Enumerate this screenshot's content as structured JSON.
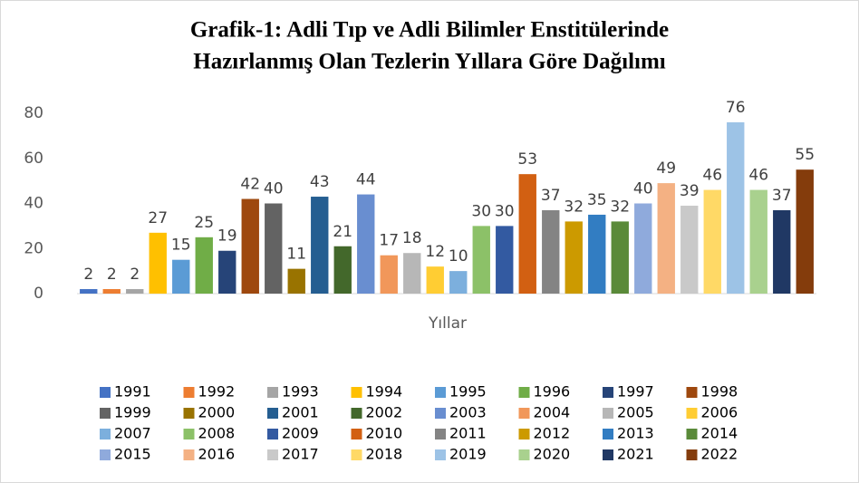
{
  "chart_data": {
    "type": "bar",
    "title": [
      "Grafik-1: Adli Tıp ve Adli Bilimler Enstitülerinde",
      "Hazırlanmış Olan Tezlerin Yıllara Göre Dağılımı"
    ],
    "x_label": "Yıllar",
    "categories": [
      "1991",
      "1992",
      "1993",
      "1994",
      "1995",
      "1996",
      "1997",
      "1998",
      "1999",
      "2000",
      "2001",
      "2002",
      "2003",
      "2004",
      "2005",
      "2006",
      "2007",
      "2008",
      "2009",
      "2010",
      "2011",
      "2012",
      "2013",
      "2014",
      "2015",
      "2016",
      "2017",
      "2018",
      "2019",
      "2020",
      "2021",
      "2022"
    ],
    "values": [
      2,
      2,
      2,
      27,
      15,
      25,
      19,
      42,
      40,
      11,
      43,
      21,
      44,
      17,
      18,
      12,
      10,
      30,
      30,
      53,
      37,
      32,
      35,
      32,
      40,
      49,
      39,
      46,
      76,
      46,
      37,
      55
    ],
    "colors": [
      "#4472C4",
      "#ED7D31",
      "#A5A5A5",
      "#FFC000",
      "#5B9BD5",
      "#70AD47",
      "#264478",
      "#9E480E",
      "#636363",
      "#997300",
      "#255E91",
      "#43682B",
      "#698ED0",
      "#F1975A",
      "#B7B7B7",
      "#FFCD33",
      "#7CAFDD",
      "#8CC168",
      "#335AA1",
      "#D26012",
      "#848484",
      "#CC9A00",
      "#327DC2",
      "#5A8A39",
      "#8FAADC",
      "#F4B183",
      "#C9C9C9",
      "#FFD966",
      "#9DC3E6",
      "#A9D18E",
      "#203864",
      "#843C0C"
    ],
    "ylim": [
      0,
      80
    ],
    "yticks": [
      0,
      20,
      40,
      60,
      80
    ],
    "grid": false,
    "legend": "bottom"
  }
}
